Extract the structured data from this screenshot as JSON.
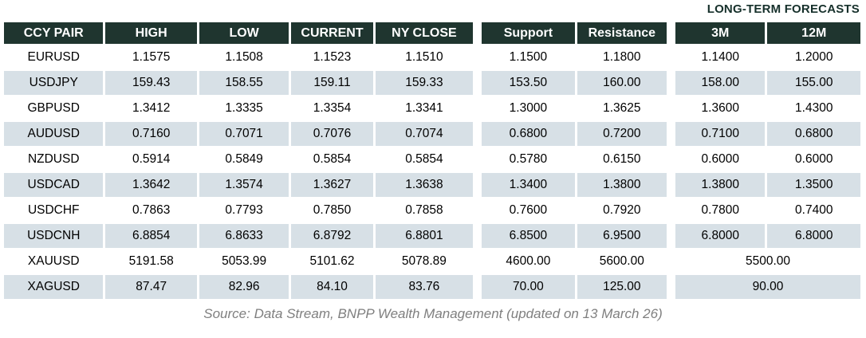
{
  "title": "LONG-TERM FORECASTS",
  "table": {
    "columns": [
      "CCY PAIR",
      "HIGH",
      "LOW",
      "CURRENT",
      "NY CLOSE",
      "Support",
      "Resistance",
      "3M",
      "12M"
    ],
    "rows": [
      {
        "pair": "EURUSD",
        "high": "1.1575",
        "low": "1.1508",
        "current": "1.1523",
        "ny_close": "1.1510",
        "support": "1.1500",
        "resistance": "1.1800",
        "forecast_3m": "1.1400",
        "forecast_12m": "1.2000"
      },
      {
        "pair": "USDJPY",
        "high": "159.43",
        "low": "158.55",
        "current": "159.11",
        "ny_close": "159.33",
        "support": "153.50",
        "resistance": "160.00",
        "forecast_3m": "158.00",
        "forecast_12m": "155.00"
      },
      {
        "pair": "GBPUSD",
        "high": "1.3412",
        "low": "1.3335",
        "current": "1.3354",
        "ny_close": "1.3341",
        "support": "1.3000",
        "resistance": "1.3625",
        "forecast_3m": "1.3600",
        "forecast_12m": "1.4300"
      },
      {
        "pair": "AUDUSD",
        "high": "0.7160",
        "low": "0.7071",
        "current": "0.7076",
        "ny_close": "0.7074",
        "support": "0.6800",
        "resistance": "0.7200",
        "forecast_3m": "0.7100",
        "forecast_12m": "0.6800"
      },
      {
        "pair": "NZDUSD",
        "high": "0.5914",
        "low": "0.5849",
        "current": "0.5854",
        "ny_close": "0.5854",
        "support": "0.5780",
        "resistance": "0.6150",
        "forecast_3m": "0.6000",
        "forecast_12m": "0.6000"
      },
      {
        "pair": "USDCAD",
        "high": "1.3642",
        "low": "1.3574",
        "current": "1.3627",
        "ny_close": "1.3638",
        "support": "1.3400",
        "resistance": "1.3800",
        "forecast_3m": "1.3800",
        "forecast_12m": "1.3500"
      },
      {
        "pair": "USDCHF",
        "high": "0.7863",
        "low": "0.7793",
        "current": "0.7850",
        "ny_close": "0.7858",
        "support": "0.7600",
        "resistance": "0.7920",
        "forecast_3m": "0.7800",
        "forecast_12m": "0.7400"
      },
      {
        "pair": "USDCNH",
        "high": "6.8854",
        "low": "6.8633",
        "current": "6.8792",
        "ny_close": "6.8801",
        "support": "6.8500",
        "resistance": "6.9500",
        "forecast_3m": "6.8000",
        "forecast_12m": "6.8000"
      },
      {
        "pair": "XAUUSD",
        "high": "5191.58",
        "low": "5053.99",
        "current": "5101.62",
        "ny_close": "5078.89",
        "support": "4600.00",
        "resistance": "5600.00",
        "forecast_3m_12m": "5500.00"
      },
      {
        "pair": "XAGUSD",
        "high": "87.47",
        "low": "82.96",
        "current": "84.10",
        "ny_close": "83.76",
        "support": "70.00",
        "resistance": "125.00",
        "forecast_3m_12m": "90.00"
      }
    ]
  },
  "footer": "Source: Data Stream, BNPP Wealth Management (updated on 13 March 26)",
  "colors": {
    "header_bg": "#1f352f",
    "row_alt_bg": "#d7e0e6",
    "title_text": "#16302b",
    "footer_text": "#7f7f7f"
  }
}
